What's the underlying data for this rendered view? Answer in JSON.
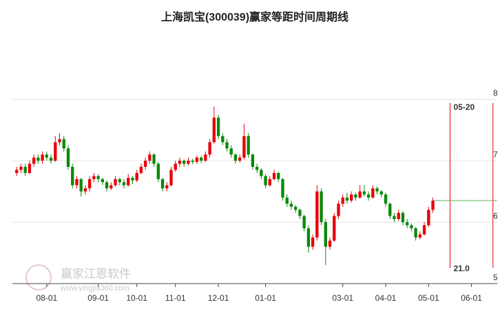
{
  "chart_data": {
    "type": "candlestick",
    "title": "上海凯宝(300039)赢家等距时间周期线",
    "watermark": "赢家江恩软件",
    "watermark_url": "www.yingjia360.com",
    "up_color": "#e8000b",
    "down_color": "#0a8a0a",
    "grid": true,
    "xlim": [
      -1,
      112
    ],
    "ylim": [
      5,
      9
    ],
    "yticks": [
      5,
      6,
      7,
      8
    ],
    "xticks": [
      {
        "value": 7,
        "label": "08-01"
      },
      {
        "value": 19,
        "label": "09-01"
      },
      {
        "value": 28,
        "label": "10-01"
      },
      {
        "value": 37,
        "label": "11-01"
      },
      {
        "value": 47,
        "label": "12-01"
      },
      {
        "value": 58,
        "label": "01-01"
      },
      {
        "value": 76,
        "label": "03-01"
      },
      {
        "value": 86,
        "label": "04-01"
      },
      {
        "value": 96,
        "label": "05-01"
      },
      {
        "value": 106,
        "label": "06-01"
      }
    ],
    "cycle_lines": [
      {
        "x": 101,
        "label": "05-20",
        "span": {
          "value": 21,
          "label": "21.0"
        }
      },
      {
        "x": 111
      }
    ],
    "ohlc": [
      [
        6.8,
        6.9,
        6.75,
        6.85
      ],
      [
        6.85,
        6.95,
        6.8,
        6.9
      ],
      [
        6.9,
        6.95,
        6.75,
        6.8
      ],
      [
        6.8,
        7.0,
        6.78,
        6.95
      ],
      [
        6.95,
        7.1,
        6.9,
        7.05
      ],
      [
        7.05,
        7.1,
        6.95,
        7.0
      ],
      [
        7.0,
        7.15,
        6.95,
        7.1
      ],
      [
        7.1,
        7.15,
        7.0,
        7.05
      ],
      [
        7.05,
        7.1,
        6.95,
        7.0
      ],
      [
        7.0,
        7.4,
        6.98,
        7.3
      ],
      [
        7.3,
        7.45,
        7.25,
        7.35
      ],
      [
        7.35,
        7.4,
        7.15,
        7.2
      ],
      [
        7.2,
        7.25,
        6.85,
        6.9
      ],
      [
        6.9,
        6.95,
        6.55,
        6.6
      ],
      [
        6.6,
        6.75,
        6.55,
        6.7
      ],
      [
        6.7,
        6.72,
        6.42,
        6.5
      ],
      [
        6.5,
        6.6,
        6.45,
        6.55
      ],
      [
        6.55,
        6.75,
        6.5,
        6.7
      ],
      [
        6.7,
        6.8,
        6.65,
        6.75
      ],
      [
        6.75,
        6.78,
        6.65,
        6.7
      ],
      [
        6.7,
        6.72,
        6.6,
        6.65
      ],
      [
        6.65,
        6.68,
        6.5,
        6.55
      ],
      [
        6.55,
        6.65,
        6.52,
        6.6
      ],
      [
        6.6,
        6.75,
        6.58,
        6.7
      ],
      [
        6.7,
        6.72,
        6.6,
        6.65
      ],
      [
        6.65,
        6.7,
        6.55,
        6.6
      ],
      [
        6.6,
        6.78,
        6.58,
        6.72
      ],
      [
        6.72,
        6.75,
        6.62,
        6.68
      ],
      [
        6.68,
        6.85,
        6.65,
        6.8
      ],
      [
        6.8,
        6.95,
        6.78,
        6.9
      ],
      [
        6.9,
        7.05,
        6.85,
        7.0
      ],
      [
        7.0,
        7.15,
        6.95,
        7.1
      ],
      [
        7.1,
        7.12,
        6.9,
        6.95
      ],
      [
        6.95,
        6.98,
        6.65,
        6.7
      ],
      [
        6.7,
        6.72,
        6.5,
        6.55
      ],
      [
        6.55,
        6.65,
        6.5,
        6.6
      ],
      [
        6.6,
        6.9,
        6.58,
        6.85
      ],
      [
        6.85,
        7.0,
        6.82,
        6.95
      ],
      [
        6.95,
        7.05,
        6.9,
        7.0
      ],
      [
        7.0,
        7.02,
        6.9,
        6.95
      ],
      [
        6.95,
        7.05,
        6.92,
        7.0
      ],
      [
        7.0,
        7.03,
        6.94,
        6.98
      ],
      [
        6.98,
        7.08,
        6.95,
        7.05
      ],
      [
        7.05,
        7.08,
        6.96,
        7.0
      ],
      [
        7.0,
        7.15,
        6.98,
        7.1
      ],
      [
        7.1,
        7.35,
        7.05,
        7.3
      ],
      [
        7.3,
        7.88,
        7.28,
        7.7
      ],
      [
        7.7,
        7.75,
        7.35,
        7.4
      ],
      [
        7.4,
        7.45,
        7.25,
        7.3
      ],
      [
        7.3,
        7.35,
        7.15,
        7.2
      ],
      [
        7.2,
        7.25,
        7.05,
        7.1
      ],
      [
        7.1,
        7.12,
        6.95,
        7.0
      ],
      [
        7.0,
        7.1,
        6.97,
        7.05
      ],
      [
        7.05,
        7.6,
        7.02,
        7.4
      ],
      [
        7.4,
        7.45,
        7.05,
        7.1
      ],
      [
        7.1,
        7.12,
        6.85,
        6.9
      ],
      [
        6.9,
        6.95,
        6.8,
        6.85
      ],
      [
        6.85,
        6.88,
        6.7,
        6.75
      ],
      [
        6.75,
        6.78,
        6.55,
        6.6
      ],
      [
        6.6,
        6.75,
        6.58,
        6.7
      ],
      [
        6.7,
        6.85,
        6.68,
        6.8
      ],
      [
        6.8,
        6.82,
        6.65,
        6.7
      ],
      [
        6.7,
        6.72,
        6.35,
        6.4
      ],
      [
        6.4,
        6.45,
        6.25,
        6.3
      ],
      [
        6.3,
        6.35,
        6.2,
        6.25
      ],
      [
        6.25,
        6.28,
        6.15,
        6.2
      ],
      [
        6.2,
        6.22,
        6.05,
        6.1
      ],
      [
        6.1,
        6.12,
        5.85,
        5.9
      ],
      [
        5.9,
        5.95,
        5.5,
        5.6
      ],
      [
        5.6,
        5.8,
        5.55,
        5.75
      ],
      [
        5.75,
        6.6,
        5.7,
        6.5
      ],
      [
        6.5,
        6.55,
        5.95,
        6.0
      ],
      [
        6.0,
        6.05,
        5.3,
        5.6
      ],
      [
        5.6,
        5.75,
        5.55,
        5.7
      ],
      [
        5.7,
        6.15,
        5.68,
        6.1
      ],
      [
        6.1,
        6.35,
        6.05,
        6.3
      ],
      [
        6.3,
        6.45,
        6.25,
        6.4
      ],
      [
        6.4,
        6.48,
        6.3,
        6.35
      ],
      [
        6.35,
        6.5,
        6.32,
        6.45
      ],
      [
        6.45,
        6.48,
        6.35,
        6.4
      ],
      [
        6.4,
        6.6,
        6.38,
        6.5
      ],
      [
        6.5,
        6.6,
        6.42,
        6.45
      ],
      [
        6.45,
        6.5,
        6.35,
        6.4
      ],
      [
        6.4,
        6.6,
        6.38,
        6.55
      ],
      [
        6.55,
        6.58,
        6.45,
        6.5
      ],
      [
        6.5,
        6.52,
        6.4,
        6.45
      ],
      [
        6.45,
        6.48,
        6.25,
        6.3
      ],
      [
        6.3,
        6.32,
        6.05,
        6.1
      ],
      [
        6.1,
        6.15,
        6.0,
        6.05
      ],
      [
        6.05,
        6.2,
        6.02,
        6.15
      ],
      [
        6.15,
        6.18,
        5.95,
        6.0
      ],
      [
        6.0,
        6.05,
        5.9,
        5.95
      ],
      [
        5.95,
        5.98,
        5.85,
        5.9
      ],
      [
        5.9,
        5.92,
        5.7,
        5.75
      ],
      [
        5.75,
        5.85,
        5.72,
        5.8
      ],
      [
        5.8,
        6.0,
        5.78,
        5.95
      ],
      [
        5.95,
        6.25,
        5.92,
        6.2
      ],
      [
        6.2,
        6.4,
        6.15,
        6.35
      ]
    ]
  }
}
